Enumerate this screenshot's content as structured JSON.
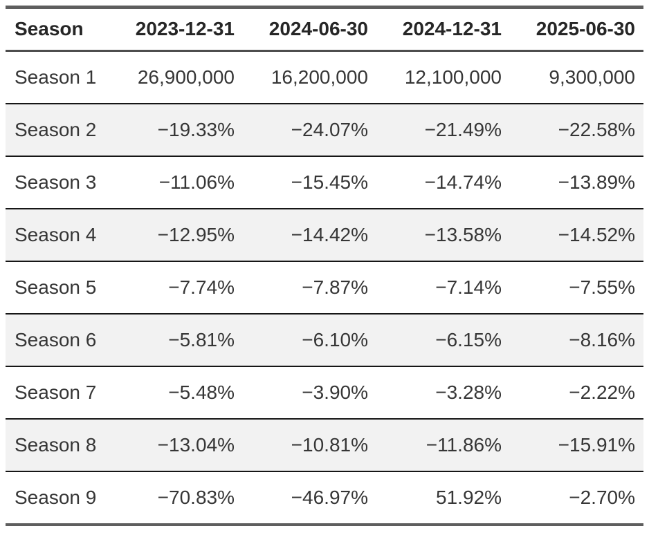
{
  "chart_data": {
    "type": "table",
    "columns": [
      "Season",
      "2023-12-31",
      "2024-06-30",
      "2024-12-31",
      "2025-06-30"
    ],
    "rows": [
      [
        "Season 1",
        "26,900,000",
        "16,200,000",
        "12,100,000",
        "9,300,000"
      ],
      [
        "Season 2",
        "−19.33%",
        "−24.07%",
        "−21.49%",
        "−22.58%"
      ],
      [
        "Season 3",
        "−11.06%",
        "−15.45%",
        "−14.74%",
        "−13.89%"
      ],
      [
        "Season 4",
        "−12.95%",
        "−14.42%",
        "−13.58%",
        "−14.52%"
      ],
      [
        "Season 5",
        "−7.74%",
        "−7.87%",
        "−7.14%",
        "−7.55%"
      ],
      [
        "Season 6",
        "−5.81%",
        "−6.10%",
        "−6.15%",
        "−8.16%"
      ],
      [
        "Season 7",
        "−5.48%",
        "−3.90%",
        "−3.28%",
        "−2.22%"
      ],
      [
        "Season 8",
        "−13.04%",
        "−10.81%",
        "−11.86%",
        "−15.91%"
      ],
      [
        "Season 9",
        "−70.83%",
        "−46.97%",
        "51.92%",
        "−2.70%"
      ]
    ],
    "layout": {
      "striped_rows": "even rows shaded",
      "first_column_align": "left",
      "value_columns_align": "right",
      "grid": "horizontal rules only"
    }
  },
  "colors": {
    "outer_border": "#5e5e5e",
    "header_border": "#4d4d4d",
    "row_border": "#161616",
    "stripe_bg": "#f2f2f2",
    "header_text": "#262626",
    "body_text": "#363636",
    "page_bg": "#ffffff"
  }
}
